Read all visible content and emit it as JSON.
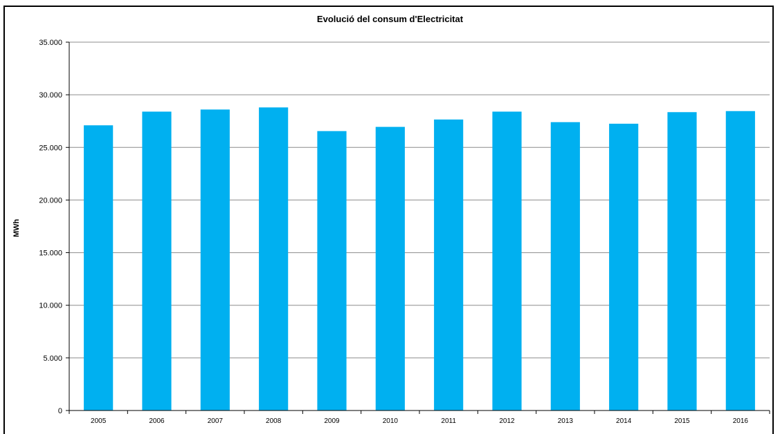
{
  "chart_data": {
    "type": "bar",
    "title": "Evolució del consum  d'Electricitat",
    "xlabel": "",
    "ylabel": "MWh",
    "categories": [
      "2005",
      "2006",
      "2007",
      "2008",
      "2009",
      "2010",
      "2011",
      "2012",
      "2013",
      "2014",
      "2015",
      "2016"
    ],
    "values": [
      27100,
      28400,
      28600,
      28800,
      26550,
      26950,
      27650,
      28400,
      27400,
      27250,
      28350,
      28450
    ],
    "ylim": [
      0,
      35000
    ],
    "yticks": [
      0,
      5000,
      10000,
      15000,
      20000,
      25000,
      30000,
      35000
    ],
    "ytick_labels": [
      "0",
      "5.000",
      "10.000",
      "15.000",
      "20.000",
      "25.000",
      "30.000",
      "35.000"
    ],
    "grid": true,
    "legend": "none",
    "bar_color": "#00b0f0",
    "gridline_color": "#8c8c8c"
  }
}
